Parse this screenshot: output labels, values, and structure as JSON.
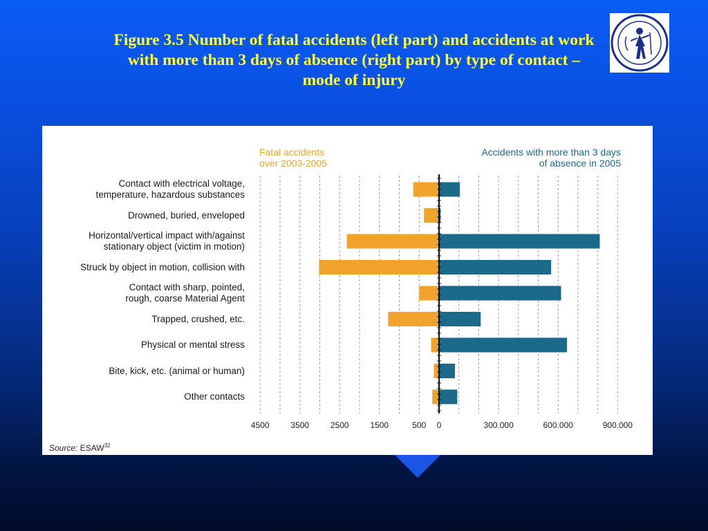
{
  "slide": {
    "title_lines": [
      "Figure 3.5 Number of fatal accidents (left part) and accidents at work",
      "with more than 3 days of absence (right part) by type of contact –",
      "mode of injury"
    ],
    "logo_icon": "university-seal-icon",
    "background_top": "#0a5cf5",
    "background_bottom": "#000a28"
  },
  "chart_data": {
    "type": "bar",
    "orientation": "horizontal",
    "categories": [
      [
        "Contact with electrical voltage,",
        "temperature, hazardous substances"
      ],
      [
        "Drowned, buried, enveloped"
      ],
      [
        "Horizontal/vertical impact with/against",
        "stationary object (victim in motion)"
      ],
      [
        "Struck by object in motion, collision with"
      ],
      [
        "Contact with sharp, pointed,",
        "rough, coarse Material Agent"
      ],
      [
        "Trapped, crushed, etc."
      ],
      [
        "Physical or mental stress"
      ],
      [
        "Bite, kick, etc. (animal or human)"
      ],
      [
        "Other contacts"
      ]
    ],
    "series": [
      {
        "name": [
          "Fatal accidents",
          "over 2003-2005"
        ],
        "side": "left",
        "color": "#f0a42b",
        "values": [
          650,
          380,
          2320,
          3020,
          500,
          1280,
          200,
          130,
          170
        ]
      },
      {
        "name": [
          "Accidents with more than 3 days",
          "of absence  in 2005"
        ],
        "side": "right",
        "color": "#1b6a8a",
        "values": [
          105000,
          8000,
          810000,
          565000,
          615000,
          210000,
          645000,
          80000,
          92000
        ]
      }
    ],
    "left_axis": {
      "ticks": [
        "4500",
        "3500",
        "2500",
        "1500",
        "500",
        "0"
      ],
      "tick_values": [
        4500,
        3500,
        2500,
        1500,
        500,
        0
      ]
    },
    "right_axis": {
      "ticks": [
        "300.000",
        "600.000",
        "900.000"
      ],
      "tick_values": [
        300000,
        600000,
        900000
      ]
    },
    "source_label": "Source:",
    "source_text": "ESAW",
    "source_sup": "32",
    "grid": true
  }
}
